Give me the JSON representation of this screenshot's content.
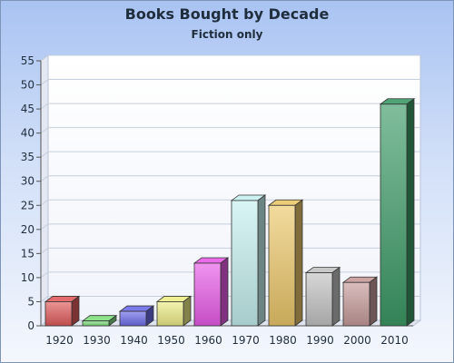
{
  "chart_data": {
    "type": "bar",
    "title": "Books Bought by Decade",
    "subtitle": "Fiction only",
    "xlabel": "",
    "ylabel": "",
    "ylim": [
      0,
      55
    ],
    "yticks": [
      0,
      5,
      10,
      15,
      20,
      25,
      30,
      35,
      40,
      45,
      50,
      55
    ],
    "grid": true,
    "legend": "none",
    "categories": [
      "1920",
      "1930",
      "1940",
      "1950",
      "1960",
      "1970",
      "1980",
      "1990",
      "2000",
      "2010"
    ],
    "values": [
      5,
      1,
      3,
      5,
      13,
      26,
      25,
      11,
      9,
      46
    ],
    "colors": [
      "#e05a5a",
      "#7fe07f",
      "#6b6bea",
      "#ecec86",
      "#e85be8",
      "#c5f0ef",
      "#ebc76a",
      "#c2c2c2",
      "#c69a9a",
      "#3c9a66"
    ]
  }
}
